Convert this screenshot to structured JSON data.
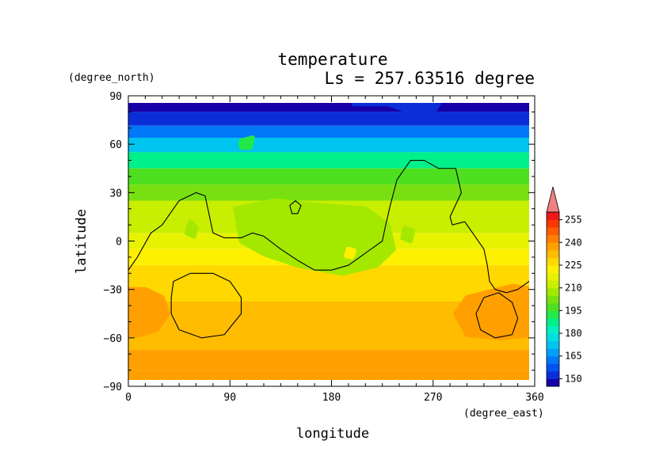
{
  "chart_data": {
    "type": "heatmap",
    "title": "temperature",
    "subtitle": "Ls = 257.63516 degree",
    "xlabel": "longitude",
    "ylabel": "latitude",
    "xunit": "(degree_east)",
    "yunit": "(degree_north)",
    "xlim": [
      0,
      360
    ],
    "ylim": [
      -90,
      90
    ],
    "xticks": [
      "0",
      "90",
      "180",
      "270",
      "360"
    ],
    "yticks": [
      "90",
      "60",
      "30",
      "0",
      "−30",
      "−60",
      "−90"
    ],
    "colorbar": {
      "labels": [
        "150",
        "165",
        "180",
        "195",
        "210",
        "225",
        "240",
        "255"
      ],
      "levels": [
        145,
        150,
        155,
        160,
        165,
        170,
        175,
        180,
        185,
        190,
        195,
        200,
        205,
        210,
        215,
        220,
        225,
        230,
        235,
        240,
        245,
        250,
        255,
        260
      ],
      "colors": [
        "#1500a8",
        "#0a2fd9",
        "#0052f2",
        "#0078f8",
        "#00a0f8",
        "#00c4f0",
        "#00e0e0",
        "#00f0c0",
        "#00f08a",
        "#22e84a",
        "#4ee020",
        "#78e010",
        "#a4e800",
        "#c8ee00",
        "#e6f200",
        "#fff000",
        "#ffd800",
        "#ffbc00",
        "#ffa000",
        "#ff8000",
        "#ff5e00",
        "#f83800",
        "#f01818",
        "#f28080"
      ]
    },
    "latitude_profile": [
      {
        "lat": 85,
        "value": 146
      },
      {
        "lat": 75,
        "value": 150
      },
      {
        "lat": 68,
        "value": 160
      },
      {
        "lat": 60,
        "value": 174
      },
      {
        "lat": 50,
        "value": 186
      },
      {
        "lat": 40,
        "value": 196
      },
      {
        "lat": 30,
        "value": 204
      },
      {
        "lat": 20,
        "value": 210
      },
      {
        "lat": 10,
        "value": 214
      },
      {
        "lat": 0,
        "value": 217
      },
      {
        "lat": -10,
        "value": 221
      },
      {
        "lat": -20,
        "value": 225
      },
      {
        "lat": -30,
        "value": 228
      },
      {
        "lat": -45,
        "value": 232
      },
      {
        "lat": -60,
        "value": 234
      },
      {
        "lat": -75,
        "value": 235
      },
      {
        "lat": -85,
        "value": 235
      }
    ],
    "regions": [
      {
        "name": "warm-sw",
        "level": 239,
        "points": [
          [
            0,
            -30
          ],
          [
            15,
            -30
          ],
          [
            30,
            -35
          ],
          [
            35,
            -45
          ],
          [
            25,
            -55
          ],
          [
            10,
            -58
          ],
          [
            0,
            -58
          ]
        ]
      },
      {
        "name": "warm-se",
        "level": 239,
        "points": [
          [
            360,
            -30
          ],
          [
            340,
            -28
          ],
          [
            300,
            -35
          ],
          [
            290,
            -45
          ],
          [
            300,
            -58
          ],
          [
            330,
            -60
          ],
          [
            360,
            -58
          ]
        ]
      },
      {
        "name": "cool-tharsis",
        "level": 206,
        "points": [
          [
            95,
            20
          ],
          [
            130,
            25
          ],
          [
            170,
            22
          ],
          [
            210,
            20
          ],
          [
            230,
            10
          ],
          [
            235,
            -5
          ],
          [
            220,
            -15
          ],
          [
            190,
            -20
          ],
          [
            150,
            -15
          ],
          [
            120,
            -8
          ],
          [
            100,
            0
          ]
        ]
      },
      {
        "name": "cool-spot-a",
        "level": 206,
        "points": [
          [
            55,
            12
          ],
          [
            60,
            8
          ],
          [
            58,
            3
          ],
          [
            52,
            5
          ]
        ]
      },
      {
        "name": "cool-spot-b",
        "level": 206,
        "points": [
          [
            245,
            8
          ],
          [
            252,
            6
          ],
          [
            250,
            0
          ],
          [
            243,
            2
          ]
        ]
      },
      {
        "name": "warm-spot-c",
        "level": 224,
        "points": [
          [
            195,
            -5
          ],
          [
            200,
            -6
          ],
          [
            198,
            -10
          ],
          [
            193,
            -9
          ]
        ]
      },
      {
        "name": "cold-spot-d",
        "level": 190,
        "points": [
          [
            100,
            62
          ],
          [
            110,
            64
          ],
          [
            108,
            58
          ],
          [
            100,
            58
          ]
        ]
      },
      {
        "name": "polar-dip",
        "level": 150,
        "points": [
          [
            200,
            85
          ],
          [
            230,
            85
          ],
          [
            250,
            80
          ],
          [
            270,
            80
          ],
          [
            275,
            85
          ]
        ]
      }
    ],
    "contours": [
      {
        "name": "contour-main",
        "closed": false,
        "points": [
          [
            0,
            -18
          ],
          [
            8,
            -10
          ],
          [
            20,
            5
          ],
          [
            30,
            10
          ],
          [
            45,
            25
          ],
          [
            60,
            30
          ],
          [
            68,
            28
          ],
          [
            72,
            15
          ],
          [
            75,
            5
          ],
          [
            85,
            2
          ],
          [
            100,
            2
          ],
          [
            110,
            5
          ],
          [
            120,
            3
          ],
          [
            135,
            -5
          ],
          [
            150,
            -12
          ],
          [
            165,
            -18
          ],
          [
            180,
            -18
          ],
          [
            195,
            -15
          ],
          [
            205,
            -10
          ],
          [
            215,
            -5
          ],
          [
            225,
            0
          ],
          [
            228,
            10
          ],
          [
            232,
            22
          ],
          [
            238,
            38
          ],
          [
            250,
            50
          ],
          [
            262,
            50
          ],
          [
            275,
            45
          ],
          [
            290,
            45
          ],
          [
            295,
            30
          ],
          [
            285,
            15
          ],
          [
            287,
            10
          ],
          [
            298,
            12
          ],
          [
            305,
            5
          ],
          [
            315,
            -5
          ],
          [
            318,
            -15
          ],
          [
            320,
            -25
          ],
          [
            325,
            -30
          ],
          [
            335,
            -32
          ],
          [
            345,
            -30
          ],
          [
            355,
            -25
          ],
          [
            360,
            -20
          ]
        ]
      },
      {
        "name": "contour-ring-sw",
        "closed": true,
        "points": [
          [
            40,
            -25
          ],
          [
            55,
            -20
          ],
          [
            75,
            -20
          ],
          [
            90,
            -25
          ],
          [
            100,
            -35
          ],
          [
            100,
            -45
          ],
          [
            85,
            -58
          ],
          [
            65,
            -60
          ],
          [
            45,
            -55
          ],
          [
            38,
            -45
          ],
          [
            38,
            -35
          ]
        ]
      },
      {
        "name": "contour-ring-se",
        "closed": true,
        "points": [
          [
            315,
            -35
          ],
          [
            328,
            -32
          ],
          [
            340,
            -38
          ],
          [
            345,
            -48
          ],
          [
            340,
            -58
          ],
          [
            325,
            -60
          ],
          [
            312,
            -55
          ],
          [
            308,
            -45
          ]
        ]
      },
      {
        "name": "contour-small",
        "closed": true,
        "points": [
          [
            143,
            22
          ],
          [
            148,
            25
          ],
          [
            153,
            22
          ],
          [
            150,
            17
          ],
          [
            145,
            17
          ]
        ]
      }
    ]
  }
}
